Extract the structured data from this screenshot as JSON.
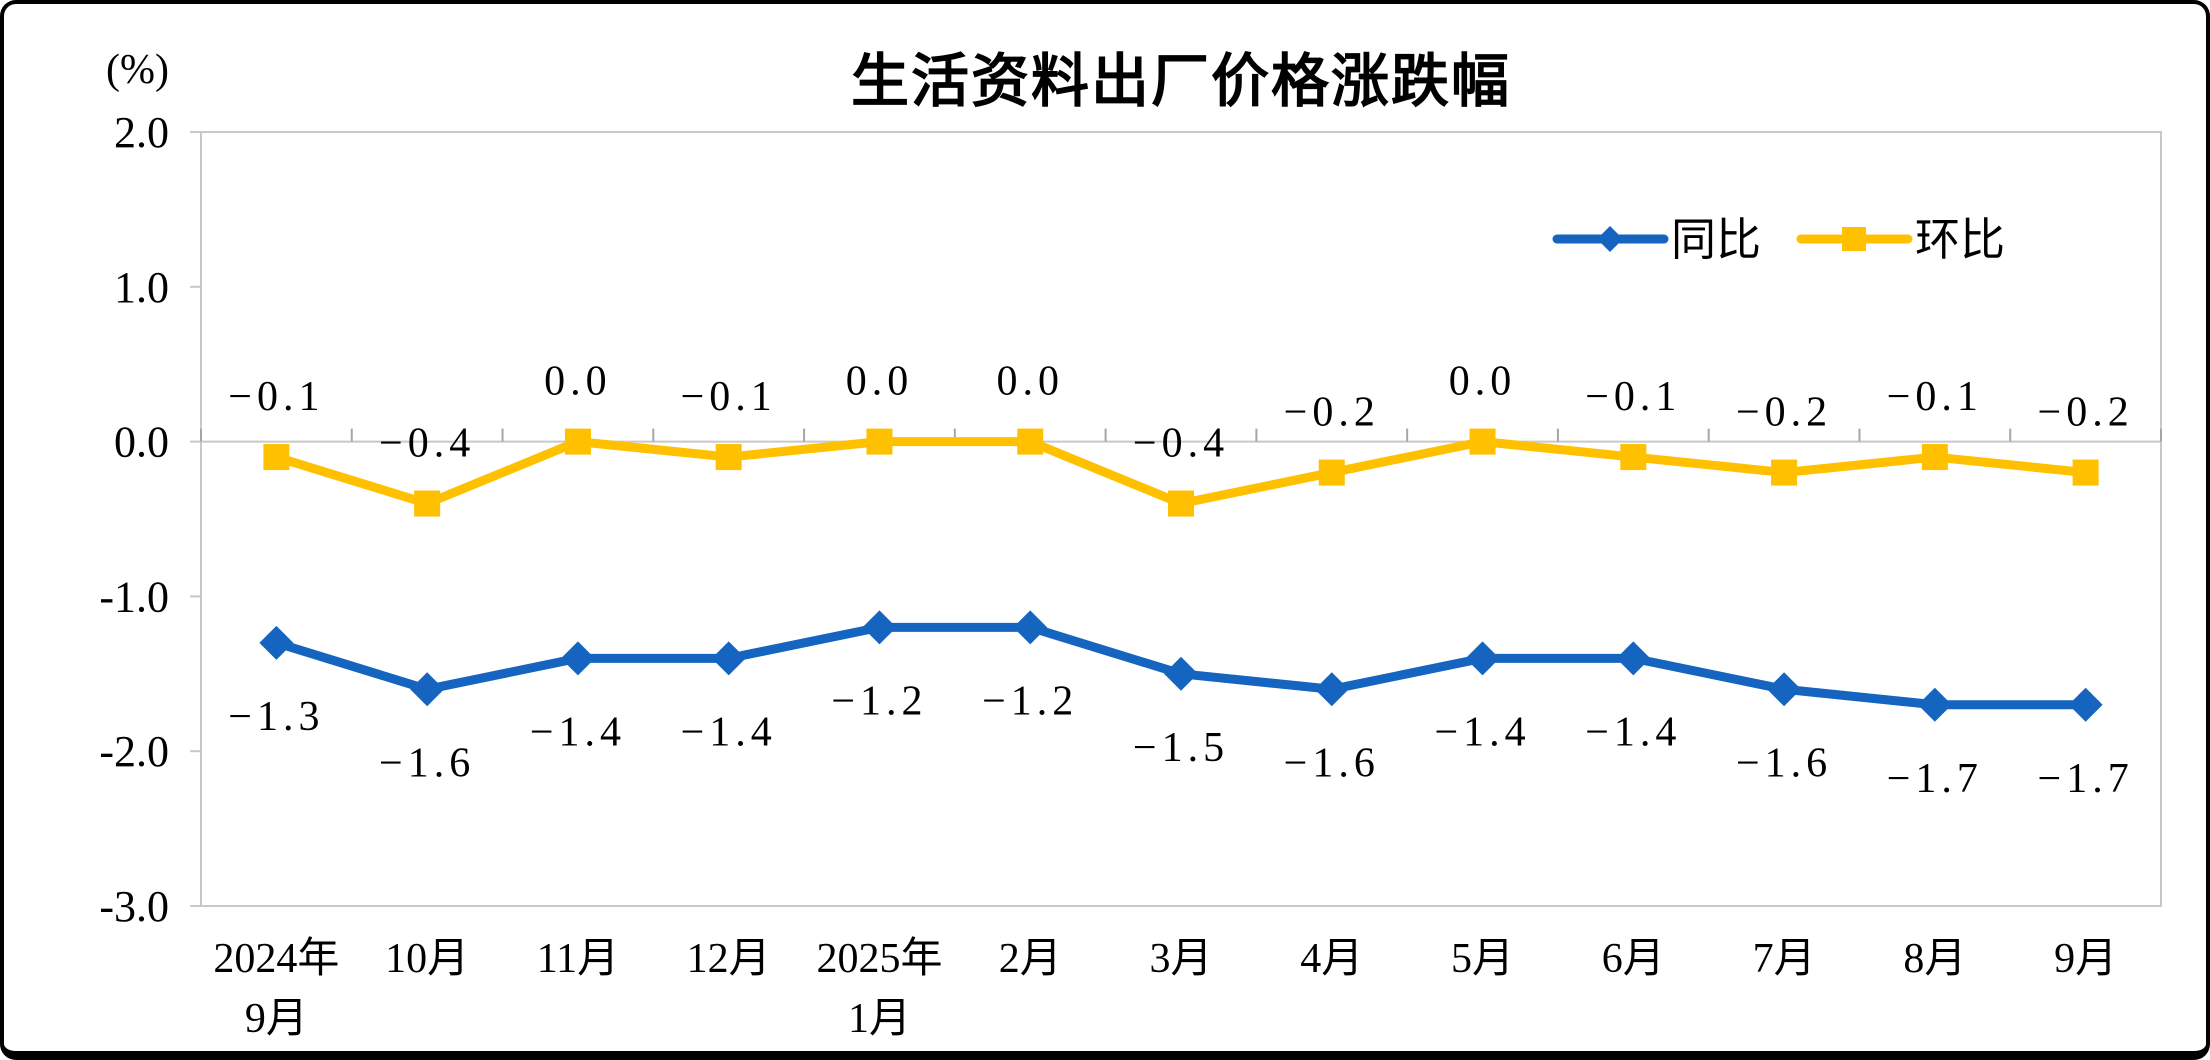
{
  "title": "生活资料出厂价格涨跌幅",
  "y_axis_unit": "(%)",
  "legend": {
    "items": [
      "同比",
      "环比"
    ]
  },
  "chart_data": {
    "type": "line",
    "title": "生活资料出厂价格涨跌幅",
    "ylabel": "(%)",
    "ylim": [
      -3.0,
      2.0
    ],
    "yticks": [
      2.0,
      1.0,
      0.0,
      -1.0,
      -2.0,
      -3.0
    ],
    "grid": false,
    "zero_axis_line": true,
    "legend_position": "top-right",
    "data_labels": true,
    "categories": [
      "2024年9月",
      "10月",
      "11月",
      "12月",
      "2025年1月",
      "2月",
      "3月",
      "4月",
      "5月",
      "6月",
      "7月",
      "8月",
      "9月"
    ],
    "category_labels": [
      [
        "2024年",
        "9月"
      ],
      [
        "10月"
      ],
      [
        "11月"
      ],
      [
        "12月"
      ],
      [
        "2025年",
        "1月"
      ],
      [
        "2月"
      ],
      [
        "3月"
      ],
      [
        "4月"
      ],
      [
        "5月"
      ],
      [
        "6月"
      ],
      [
        "7月"
      ],
      [
        "8月"
      ],
      [
        "9月"
      ]
    ],
    "series": [
      {
        "name": "同比",
        "marker": "diamond",
        "color": "#1565C0",
        "values": [
          -1.3,
          -1.6,
          -1.4,
          -1.4,
          -1.2,
          -1.2,
          -1.5,
          -1.6,
          -1.4,
          -1.4,
          -1.6,
          -1.7,
          -1.7
        ]
      },
      {
        "name": "环比",
        "marker": "square",
        "color": "#FFC000",
        "values": [
          -0.1,
          -0.4,
          0.0,
          -0.1,
          0.0,
          0.0,
          -0.4,
          -0.2,
          0.0,
          -0.1,
          -0.2,
          -0.1,
          -0.2
        ]
      }
    ],
    "axis_color": "#C8C8C8",
    "tick_color": "#A6A6A6",
    "text_color": "#000000"
  }
}
